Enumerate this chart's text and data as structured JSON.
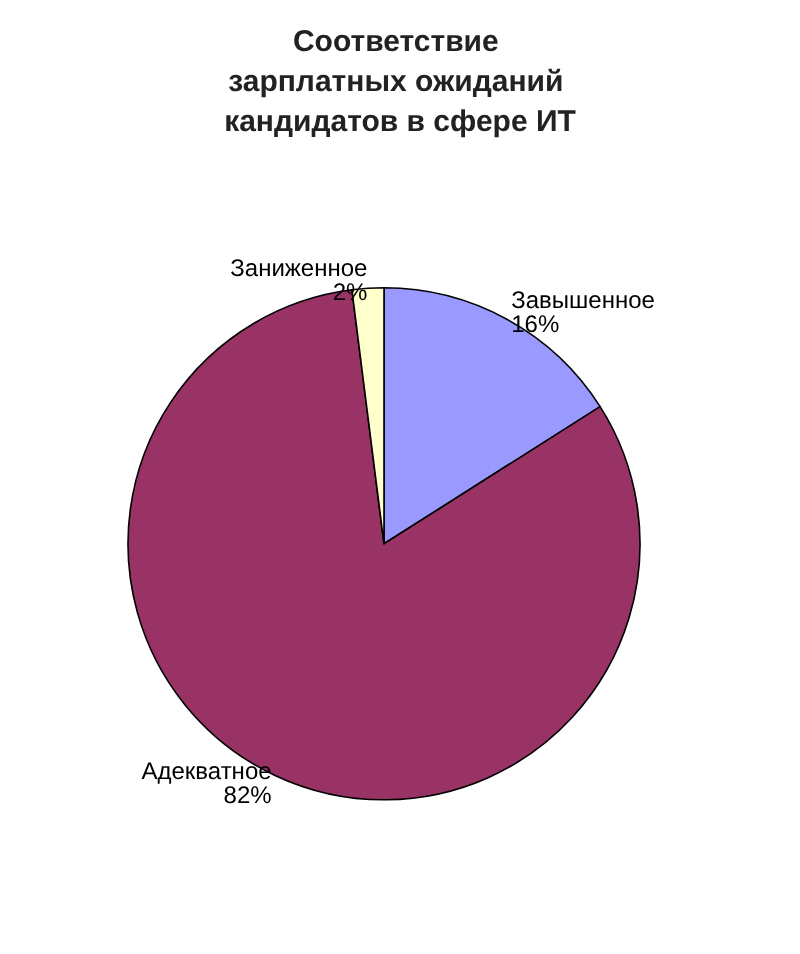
{
  "chart_data": {
    "type": "pie",
    "title": "Соответствие зарплатных ожиданий кандидатов в сфере ИТ",
    "categories": [
      "Завышенное",
      "Адекватное",
      "Заниженное"
    ],
    "values": [
      16,
      82,
      2
    ],
    "colors": [
      "#9999ff",
      "#993366",
      "#ffffcc"
    ],
    "value_labels": [
      "16%",
      "82%",
      "2%"
    ],
    "legend": false
  }
}
